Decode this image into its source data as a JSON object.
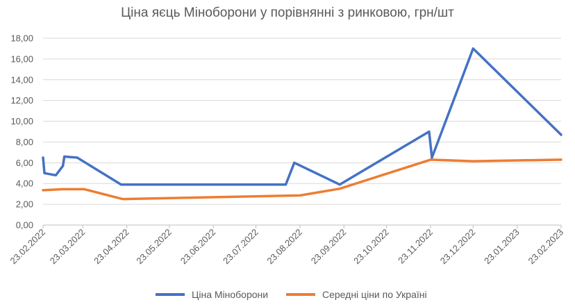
{
  "chart_data": {
    "type": "line",
    "title": "Ціна яєць Міноборони у порівнянні з ринковою, грн/шт",
    "xlabel": "",
    "ylabel": "",
    "ylim": [
      0,
      18
    ],
    "y_ticks": [
      "0,00",
      "2,00",
      "4,00",
      "6,00",
      "8,00",
      "10,00",
      "12,00",
      "14,00",
      "16,00",
      "18,00"
    ],
    "x_ticks": [
      "23.02.2022",
      "23.03.2022",
      "23.04.2022",
      "23.05.2022",
      "23.06.2022",
      "23.07.2022",
      "23.08.2022",
      "23.09.2022",
      "23.10.2022",
      "23.11.2022",
      "23.12.2022",
      "23.01.2023",
      "23.02.2023"
    ],
    "xlim": [
      "2022-02-23",
      "2023-02-23"
    ],
    "grid": true,
    "legend": "bottom",
    "series": [
      {
        "name": "Ціна Міноборони",
        "color": "#4472C4",
        "points": [
          [
            "2022-02-23",
            6.5
          ],
          [
            "2022-02-24",
            5.0
          ],
          [
            "2022-03-04",
            4.8
          ],
          [
            "2022-03-09",
            5.7
          ],
          [
            "2022-03-10",
            6.6
          ],
          [
            "2022-03-14",
            6.55
          ],
          [
            "2022-03-19",
            6.5
          ],
          [
            "2022-04-19",
            3.9
          ],
          [
            "2022-08-13",
            3.9
          ],
          [
            "2022-08-19",
            6.0
          ],
          [
            "2022-09-20",
            3.9
          ],
          [
            "2022-11-22",
            9.0
          ],
          [
            "2022-11-24",
            6.5
          ],
          [
            "2022-12-23",
            17.0
          ],
          [
            "2023-02-23",
            8.7
          ]
        ]
      },
      {
        "name": "Середні ціни по Україні",
        "color": "#ED7D31",
        "points": [
          [
            "2022-02-23",
            3.35
          ],
          [
            "2022-03-09",
            3.45
          ],
          [
            "2022-03-24",
            3.45
          ],
          [
            "2022-04-20",
            2.5
          ],
          [
            "2022-08-23",
            2.85
          ],
          [
            "2022-09-20",
            3.5
          ],
          [
            "2022-11-23",
            6.3
          ],
          [
            "2022-12-23",
            6.15
          ],
          [
            "2023-02-23",
            6.3
          ]
        ]
      }
    ]
  }
}
